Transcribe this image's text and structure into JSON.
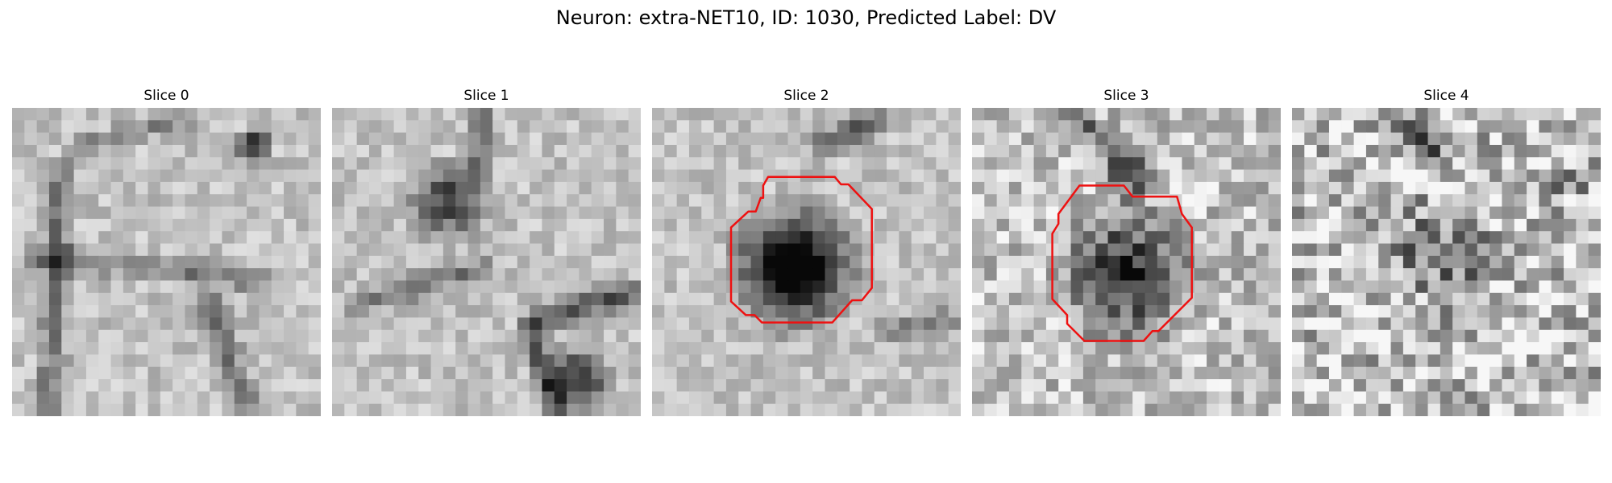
{
  "figure": {
    "title": "Neuron: extra-NET10, ID: 1030, Predicted Label: DV",
    "outline_color": "#ee1111",
    "panels": [
      {
        "label": "Slice 0",
        "seed": 11,
        "has_outline": false
      },
      {
        "label": "Slice 1",
        "seed": 23,
        "has_outline": false
      },
      {
        "label": "Slice 2",
        "seed": 37,
        "has_outline": true
      },
      {
        "label": "Slice 3",
        "seed": 53,
        "has_outline": true
      },
      {
        "label": "Slice 4",
        "seed": 71,
        "has_outline": false
      }
    ]
  }
}
